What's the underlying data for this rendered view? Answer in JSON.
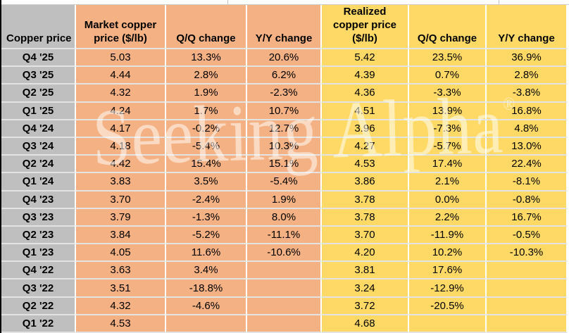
{
  "header": {
    "corner": "Copper price",
    "cols": [
      {
        "text": "Market copper\nprice ($/lb)",
        "fill": "orange"
      },
      {
        "text": "Q/Q change",
        "fill": "orange"
      },
      {
        "text": "Y/Y change",
        "fill": "orange"
      },
      {
        "text": "Realized\ncopper price\n($/lb)",
        "fill": "yellow"
      },
      {
        "text": "Q/Q change",
        "fill": "yellow"
      },
      {
        "text": "Y/Y change",
        "fill": "yellow"
      }
    ]
  },
  "watermark": {
    "text": "Seeking Alpha",
    "mark": "®"
  },
  "colors": {
    "label_gray": "#BFBFBF",
    "market_orange": "#F4B183",
    "realized_yellow": "#FFD966",
    "grid_line": "#e3e3e3",
    "left_border": "#000000"
  },
  "chart_data": {
    "type": "table",
    "title": "Copper price: market vs realized, quarterly",
    "columns": [
      "Copper price",
      "Market copper price ($/lb)",
      "Q/Q change",
      "Y/Y change",
      "Realized copper price ($/lb)",
      "Q/Q change",
      "Y/Y change"
    ],
    "rows": [
      [
        "Q4 '25",
        "5.03",
        "13.3%",
        "20.6%",
        "5.42",
        "23.5%",
        "36.9%"
      ],
      [
        "Q3 '25",
        "4.44",
        "2.8%",
        "6.2%",
        "4.39",
        "0.7%",
        "2.8%"
      ],
      [
        "Q2 '25",
        "4.32",
        "1.9%",
        "-2.3%",
        "4.36",
        "-3.3%",
        "-3.8%"
      ],
      [
        "Q1 '25",
        "4.24",
        "1.7%",
        "10.7%",
        "4.51",
        "13.9%",
        "16.8%"
      ],
      [
        "Q4 '24",
        "4.17",
        "-0.2%",
        "12.7%",
        "3.96",
        "-7.3%",
        "4.8%"
      ],
      [
        "Q3 '24",
        "4.18",
        "-5.4%",
        "10.3%",
        "4.27",
        "-5.7%",
        "13.0%"
      ],
      [
        "Q2 '24",
        "4.42",
        "15.4%",
        "15.1%",
        "4.53",
        "17.4%",
        "22.4%"
      ],
      [
        "Q1 '24",
        "3.83",
        "3.5%",
        "-5.4%",
        "3.86",
        "2.1%",
        "-8.1%"
      ],
      [
        "Q4 '23",
        "3.70",
        "-2.4%",
        "1.9%",
        "3.78",
        "0.0%",
        "-0.8%"
      ],
      [
        "Q3 '23",
        "3.79",
        "-1.3%",
        "8.0%",
        "3.78",
        "2.2%",
        "16.7%"
      ],
      [
        "Q2 '23",
        "3.84",
        "-5.2%",
        "-11.1%",
        "3.70",
        "-11.9%",
        "-0.5%"
      ],
      [
        "Q1 '23",
        "4.05",
        "11.6%",
        "-10.6%",
        "4.20",
        "10.2%",
        "-10.3%"
      ],
      [
        "Q4 '22",
        "3.63",
        "3.4%",
        "",
        "3.81",
        "17.6%",
        ""
      ],
      [
        "Q3 '22",
        "3.51",
        "-18.8%",
        "",
        "3.24",
        "-12.9%",
        ""
      ],
      [
        "Q2 '22",
        "4.32",
        "-4.6%",
        "",
        "3.72",
        "-20.5%",
        ""
      ],
      [
        "Q1 '22",
        "4.53",
        "",
        "",
        "4.68",
        "",
        ""
      ]
    ]
  },
  "sliver_ticks_x": [
    323,
    708
  ]
}
